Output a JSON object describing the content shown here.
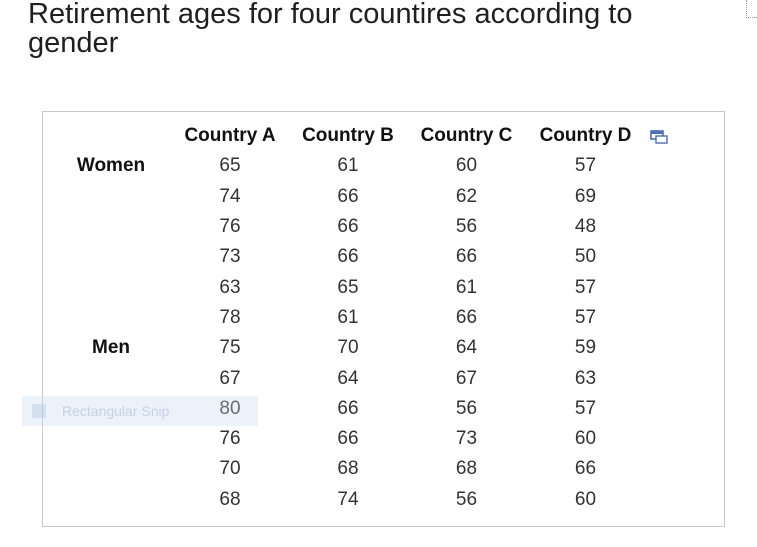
{
  "title": "Retirement ages for four countires according to gender",
  "table": {
    "headers": [
      "",
      "Country A",
      "Country B",
      "Country C",
      "Country D"
    ],
    "rows": [
      [
        "Women",
        "65",
        "61",
        "60",
        "57"
      ],
      [
        "",
        "74",
        "66",
        "62",
        "69"
      ],
      [
        "",
        "76",
        "66",
        "56",
        "48"
      ],
      [
        "",
        "73",
        "66",
        "66",
        "50"
      ],
      [
        "",
        "63",
        "65",
        "61",
        "57"
      ],
      [
        "",
        "78",
        "61",
        "66",
        "57"
      ],
      [
        "Men",
        "75",
        "70",
        "64",
        "59"
      ],
      [
        "",
        "67",
        "64",
        "67",
        "63"
      ],
      [
        "",
        "80",
        "66",
        "56",
        "57"
      ],
      [
        "",
        "76",
        "66",
        "73",
        "60"
      ],
      [
        "",
        "70",
        "68",
        "68",
        "66"
      ],
      [
        "",
        "68",
        "74",
        "56",
        "60"
      ]
    ]
  },
  "overlay": {
    "snip_label": "Rectangular Snip"
  },
  "icons": {
    "copy": "copy-icon"
  },
  "colors": {
    "icon_blue": "#4a6fc1",
    "border": "#c9c9c9"
  }
}
